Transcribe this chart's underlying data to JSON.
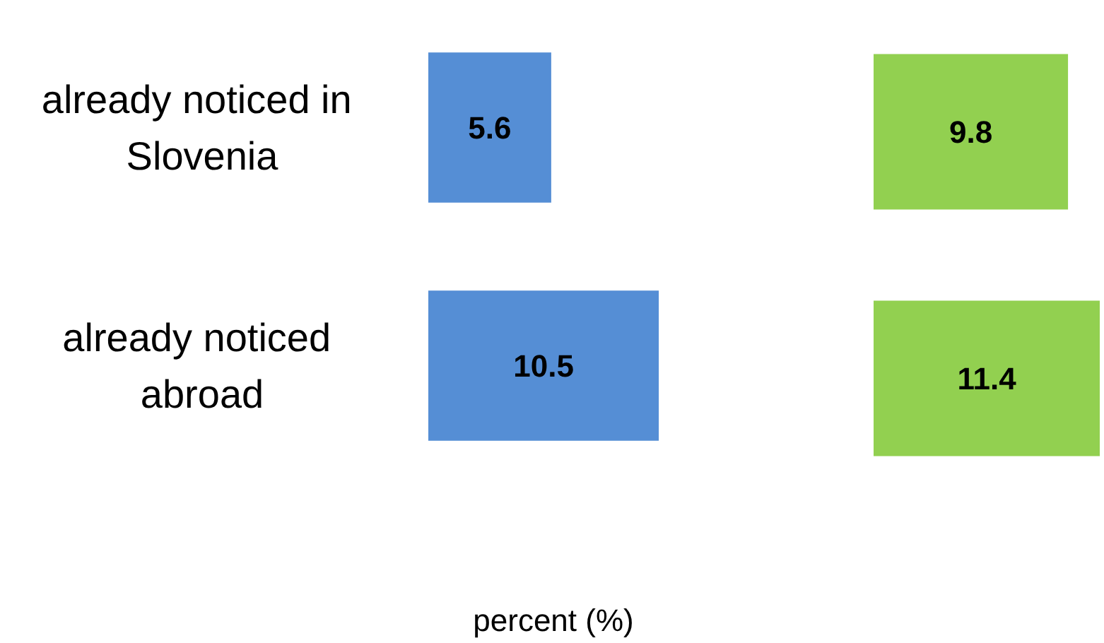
{
  "chart_data": [
    {
      "type": "bar",
      "orientation": "horizontal",
      "categories": [
        "already noticed in Slovenia",
        "already noticed abroad"
      ],
      "xlabel": "percent (%)",
      "data_labels": true,
      "grid": false,
      "series": [
        {
          "color": "#558ed5",
          "values": [
            5.6,
            10.5
          ]
        }
      ]
    },
    {
      "type": "bar",
      "orientation": "horizontal",
      "categories": [
        "already noticed in Slovenia",
        "already noticed abroad"
      ],
      "tick_labels": false,
      "data_labels": true,
      "grid": false,
      "series": [
        {
          "color": "#92d050",
          "values": [
            9.8,
            11.4
          ]
        }
      ]
    }
  ]
}
